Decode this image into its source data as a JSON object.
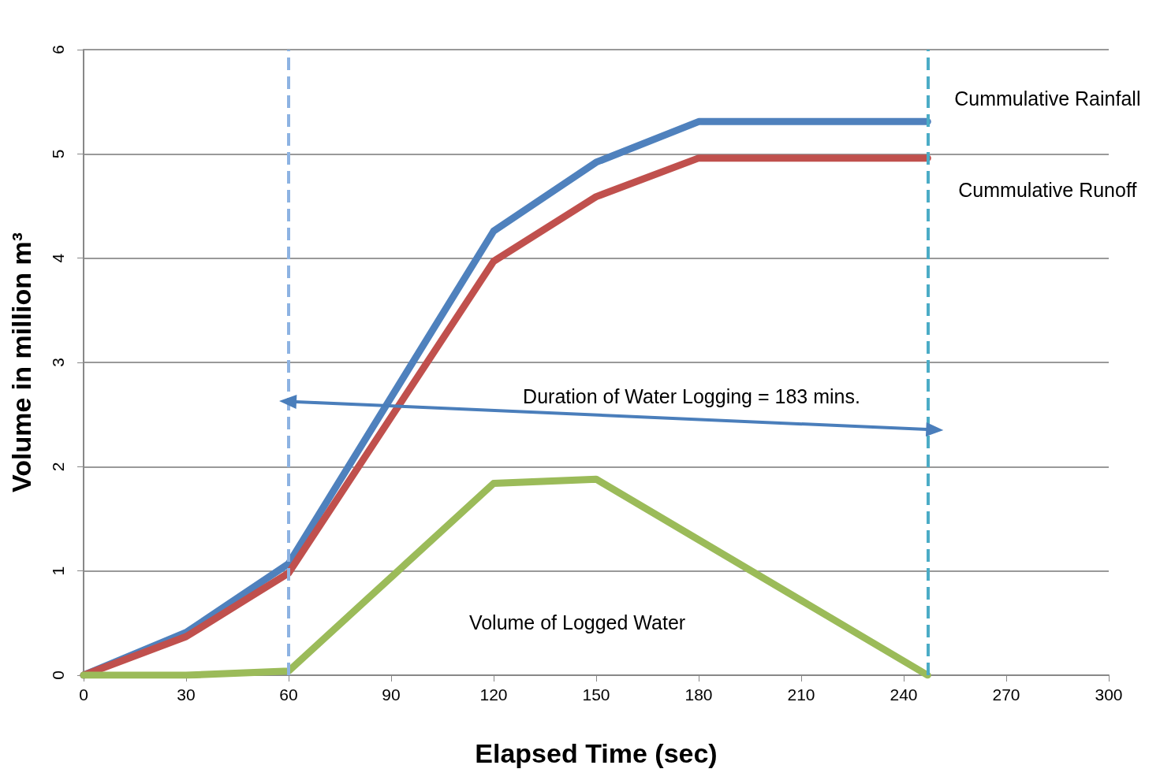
{
  "chart_data": {
    "type": "line",
    "xlabel": "Elapsed Time (sec)",
    "ylabel": "Volume in million m³",
    "xlim": [
      0,
      300
    ],
    "xticks": [
      0,
      30,
      60,
      90,
      120,
      150,
      180,
      210,
      240,
      270,
      300
    ],
    "ylim": [
      0,
      6
    ],
    "yticks": [
      0,
      1,
      2,
      3,
      4,
      5,
      6
    ],
    "grid": "y",
    "marker": "none",
    "line_style": "solid",
    "series": [
      {
        "name": "Cummulative Rainfall",
        "color": "#4f81bd",
        "x": [
          0,
          30,
          60,
          120,
          150,
          180,
          247
        ],
        "values": [
          0,
          0.41,
          1.07,
          4.26,
          4.92,
          5.31,
          5.31
        ]
      },
      {
        "name": "Cummulative Runoff",
        "color": "#c0504d",
        "x": [
          0,
          30,
          60,
          120,
          150,
          180,
          247
        ],
        "values": [
          0,
          0.37,
          0.98,
          3.97,
          4.59,
          4.96,
          4.96
        ]
      },
      {
        "color": "#9bbb59",
        "x": [
          0,
          30,
          60,
          120,
          150,
          247
        ],
        "values": [
          0,
          0,
          0.04,
          1.84,
          1.88,
          0
        ]
      }
    ],
    "ref_lines": [
      {
        "axis": "x",
        "value": 60,
        "label": null,
        "color": "#8db3e2",
        "line_style": "dashed"
      },
      {
        "axis": "x",
        "value": 247,
        "label": null,
        "color": "#4bacc6",
        "line_style": "dashed"
      }
    ],
    "annotations": [
      "Duration of Water Logging = 183 mins.",
      "Volume of Logged Water"
    ]
  }
}
